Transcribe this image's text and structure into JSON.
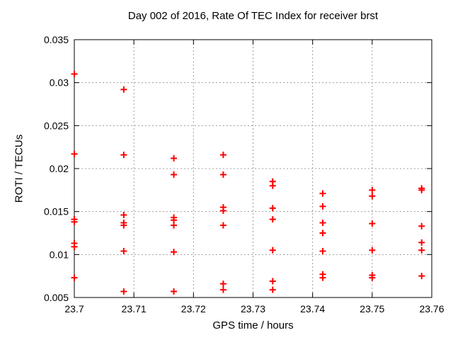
{
  "chart_data": {
    "type": "scatter",
    "title": "Day 002 of 2016, Rate Of TEC Index for receiver brst",
    "xlabel": "GPS time / hours",
    "ylabel": "ROTI / TECUs",
    "xlim": [
      23.7,
      23.76
    ],
    "ylim": [
      0.005,
      0.035
    ],
    "xticks": [
      23.7,
      23.71,
      23.72,
      23.73,
      23.74,
      23.75,
      23.76
    ],
    "xtick_labels": [
      "23.7",
      "23.71",
      "23.72",
      "23.73",
      "23.74",
      "23.75",
      "23.76"
    ],
    "yticks": [
      0.005,
      0.01,
      0.015,
      0.02,
      0.025,
      0.03,
      0.035
    ],
    "ytick_labels": [
      "0.005",
      "0.01",
      "0.015",
      "0.02",
      "0.025",
      "0.03",
      "0.035"
    ],
    "grid": true,
    "legend_position": "none",
    "marker": {
      "symbol": "plus",
      "color": "#ff0000",
      "size": 9
    },
    "colors": {
      "background": "#ffffff",
      "axis": "#000000",
      "grid": "#9c9c9c",
      "text": "#000000",
      "marker": "#ff0000"
    },
    "series": [
      {
        "name": "ROTI",
        "points": [
          [
            23.7,
            0.031
          ],
          [
            23.7,
            0.0217
          ],
          [
            23.7,
            0.0141
          ],
          [
            23.7,
            0.0138
          ],
          [
            23.7,
            0.0113
          ],
          [
            23.7,
            0.0109
          ],
          [
            23.7,
            0.0073
          ],
          [
            23.7083,
            0.0292
          ],
          [
            23.7083,
            0.0216
          ],
          [
            23.7083,
            0.0146
          ],
          [
            23.7083,
            0.0137
          ],
          [
            23.7083,
            0.0134
          ],
          [
            23.7083,
            0.0104
          ],
          [
            23.7083,
            0.0057
          ],
          [
            23.7167,
            0.0212
          ],
          [
            23.7167,
            0.0193
          ],
          [
            23.7167,
            0.0143
          ],
          [
            23.7167,
            0.014
          ],
          [
            23.7167,
            0.0134
          ],
          [
            23.7167,
            0.0103
          ],
          [
            23.7167,
            0.0057
          ],
          [
            23.725,
            0.0216
          ],
          [
            23.725,
            0.0193
          ],
          [
            23.725,
            0.0155
          ],
          [
            23.725,
            0.0151
          ],
          [
            23.725,
            0.0134
          ],
          [
            23.725,
            0.0066
          ],
          [
            23.725,
            0.0059
          ],
          [
            23.7333,
            0.0185
          ],
          [
            23.7333,
            0.018
          ],
          [
            23.7333,
            0.0154
          ],
          [
            23.7333,
            0.0141
          ],
          [
            23.7333,
            0.0105
          ],
          [
            23.7333,
            0.0069
          ],
          [
            23.7333,
            0.0059
          ],
          [
            23.7417,
            0.0171
          ],
          [
            23.7417,
            0.0156
          ],
          [
            23.7417,
            0.0137
          ],
          [
            23.7417,
            0.0125
          ],
          [
            23.7417,
            0.0104
          ],
          [
            23.7417,
            0.0077
          ],
          [
            23.7417,
            0.0073
          ],
          [
            23.75,
            0.0175
          ],
          [
            23.75,
            0.0168
          ],
          [
            23.75,
            0.0136
          ],
          [
            23.75,
            0.0105
          ],
          [
            23.75,
            0.0076
          ],
          [
            23.75,
            0.0073
          ],
          [
            23.7583,
            0.0177
          ],
          [
            23.7583,
            0.0175
          ],
          [
            23.7583,
            0.0133
          ],
          [
            23.7583,
            0.0114
          ],
          [
            23.7583,
            0.0105
          ],
          [
            23.7583,
            0.0075
          ]
        ]
      }
    ]
  }
}
